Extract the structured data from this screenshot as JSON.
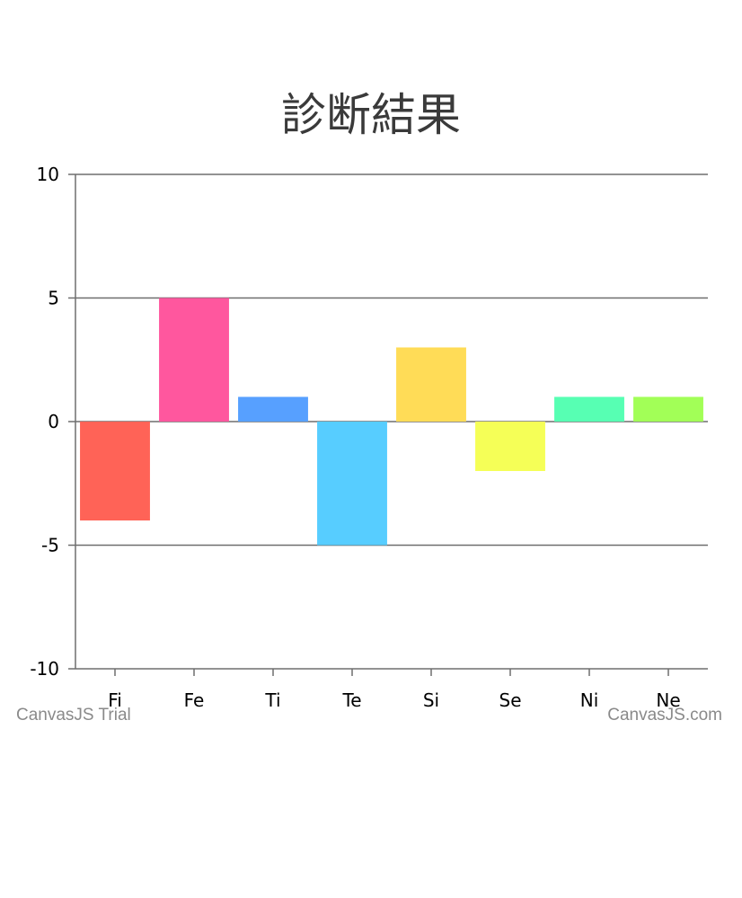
{
  "chart_data": {
    "type": "bar",
    "title": "診断結果",
    "categories": [
      "Fi",
      "Fe",
      "Ti",
      "Te",
      "Si",
      "Se",
      "Ni",
      "Ne"
    ],
    "values": [
      -4,
      5,
      1,
      -5,
      3,
      -2,
      1,
      1
    ],
    "colors": [
      "#FF6357",
      "#FF579E",
      "#57A0FF",
      "#57CDFF",
      "#FFDC57",
      "#F5FF57",
      "#57FFB3",
      "#A2FF57"
    ],
    "xlabel": "",
    "ylabel": "",
    "ylim": [
      -10,
      10
    ],
    "yticks": [
      10,
      5,
      0,
      -5,
      -10
    ],
    "grid": true,
    "legend": "none"
  },
  "watermarks": {
    "left": "CanvasJS Trial",
    "right": "CanvasJS.com"
  }
}
